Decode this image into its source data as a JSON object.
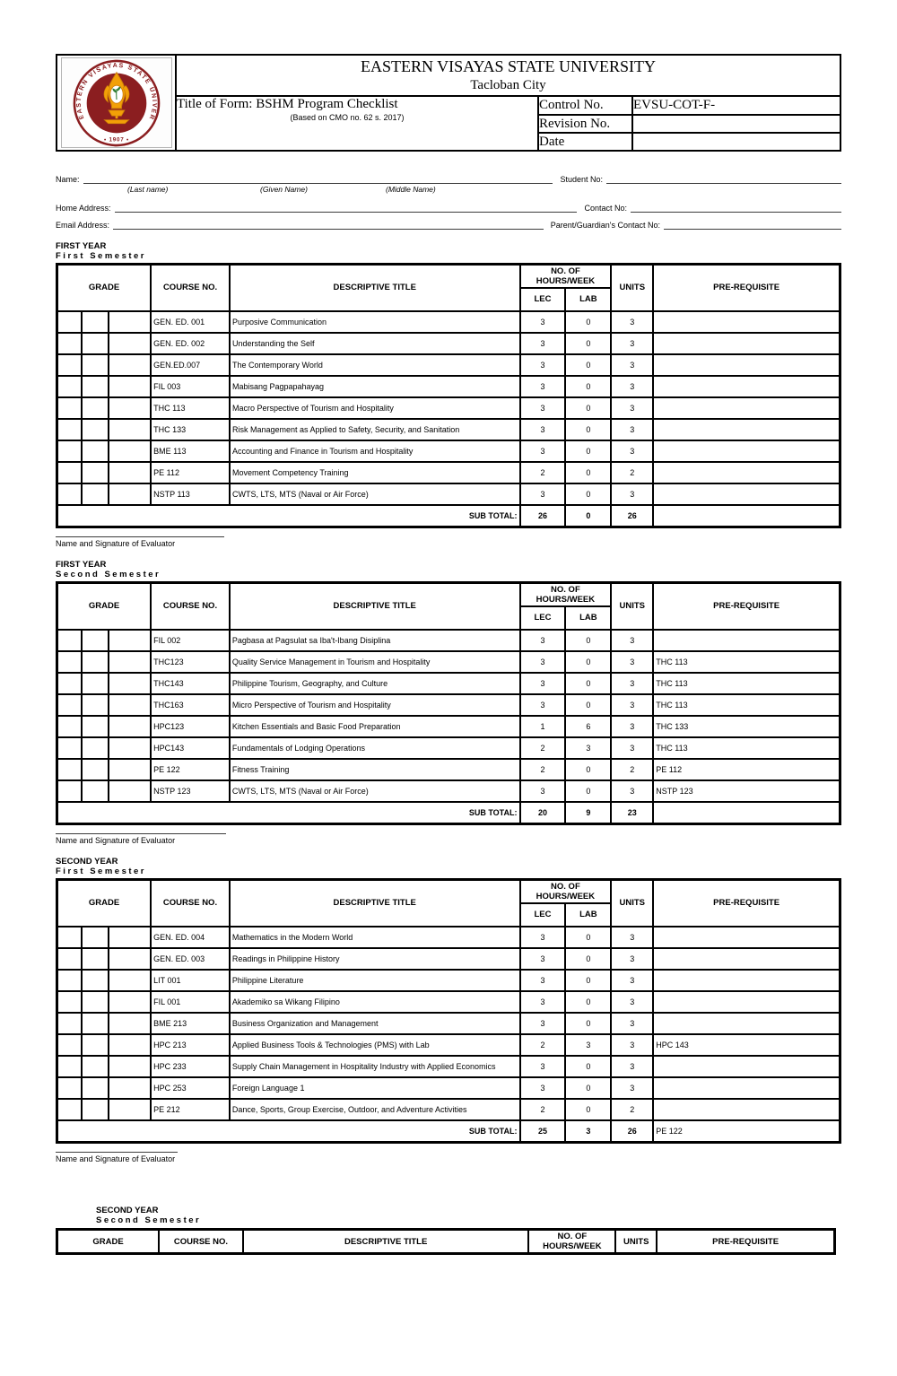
{
  "header": {
    "university": "EASTERN VISAYAS STATE UNIVERSITY",
    "city": "Tacloban City",
    "form_title": "Title of Form: BSHM Program Checklist",
    "form_subtitle": "(Based on CMO no. 62 s. 2017)",
    "control_label": "Control No.",
    "control_value": "EVSU-COT-F-",
    "revision_label": "Revision No.",
    "revision_value": "",
    "date_label": "Date",
    "date_value": "",
    "logo": {
      "ring_text": "EASTERN VISAYAS STATE UNIVERSITY",
      "year": "• 1907 •",
      "colors": {
        "maroon": "#8B1E20",
        "gold": "#F2A007",
        "gold_dark": "#C97A08",
        "green": "#2F7D32"
      }
    }
  },
  "student_info": {
    "name_label": "Name:",
    "last_name_hint": "(Last name)",
    "given_name_hint": "(Given Name)",
    "middle_name_hint": "(Middle Name)",
    "student_no_label": "Student No:",
    "home_address_label": "Home Address:",
    "contact_no_label": "Contact No:",
    "email_label": "Email Address:",
    "guardian_contact_label": "Parent/Guardian's Contact No:"
  },
  "table_headers": {
    "grade": "GRADE",
    "course_no": "COURSE NO.",
    "descriptive_title": "DESCRIPTIVE TITLE",
    "hours_week": "NO. OF HOURS/WEEK",
    "lec": "LEC",
    "lab": "LAB",
    "units": "UNITS",
    "pre_requisite": "PRE-REQUISITE",
    "sub_total": "SUB TOTAL:"
  },
  "evaluator_label": "Name and Signature of Evaluator",
  "sections": [
    {
      "year": "FIRST YEAR",
      "semester": "First Semester",
      "rows": [
        {
          "course": "GEN. ED. 001",
          "title": "Purposive Communication",
          "lec": "3",
          "lab": "0",
          "units": "3",
          "prereq": ""
        },
        {
          "course": "GEN. ED. 002",
          "title": "Understanding the Self",
          "lec": "3",
          "lab": "0",
          "units": "3",
          "prereq": ""
        },
        {
          "course": "GEN.ED.007",
          "title": "The Contemporary World",
          "lec": "3",
          "lab": "0",
          "units": "3",
          "prereq": ""
        },
        {
          "course": "FIL 003",
          "title": "Mabisang Pagpapahayag",
          "lec": "3",
          "lab": "0",
          "units": "3",
          "prereq": ""
        },
        {
          "course": "THC 113",
          "title": "Macro Perspective of Tourism and Hospitality",
          "lec": "3",
          "lab": "0",
          "units": "3",
          "prereq": ""
        },
        {
          "course": "THC 133",
          "title": "Risk Management as Applied to Safety, Security, and Sanitation",
          "lec": "3",
          "lab": "0",
          "units": "3",
          "prereq": ""
        },
        {
          "course": "BME 113",
          "title": "Accounting and Finance in Tourism and Hospitality",
          "lec": "3",
          "lab": "0",
          "units": "3",
          "prereq": ""
        },
        {
          "course": "PE 112",
          "title": "Movement Competency Training",
          "lec": "2",
          "lab": "0",
          "units": "2",
          "prereq": ""
        },
        {
          "course": "NSTP 113",
          "title": "CWTS, LTS, MTS (Naval or Air Force)",
          "lec": "3",
          "lab": "0",
          "units": "3",
          "prereq": ""
        }
      ],
      "subtotal": {
        "lec": "26",
        "lab": "0",
        "units": "26",
        "prereq": ""
      }
    },
    {
      "year": "FIRST YEAR",
      "semester": "Second Semester",
      "rows": [
        {
          "course": "FIL 002",
          "title": "Pagbasa at Pagsulat sa Iba't-Ibang Disiplina",
          "lec": "3",
          "lab": "0",
          "units": "3",
          "prereq": ""
        },
        {
          "course": "THC123",
          "title": "Quality Service Management in Tourism and Hospitality",
          "lec": "3",
          "lab": "0",
          "units": "3",
          "prereq": "THC 113"
        },
        {
          "course": "THC143",
          "title": "Philippine Tourism, Geography, and Culture",
          "lec": "3",
          "lab": "0",
          "units": "3",
          "prereq": "THC 113"
        },
        {
          "course": "THC163",
          "title": "Micro Perspective of Tourism and Hospitality",
          "lec": "3",
          "lab": "0",
          "units": "3",
          "prereq": "THC 113"
        },
        {
          "course": "HPC123",
          "title": "Kitchen Essentials and Basic Food Preparation",
          "lec": "1",
          "lab": "6",
          "units": "3",
          "prereq": "THC 133"
        },
        {
          "course": "HPC143",
          "title": "Fundamentals of Lodging Operations",
          "lec": "2",
          "lab": "3",
          "units": "3",
          "prereq": "THC 113"
        },
        {
          "course": "PE 122",
          "title": "Fitness Training",
          "lec": "2",
          "lab": "0",
          "units": "2",
          "prereq": "PE 112"
        },
        {
          "course": "NSTP 123",
          "title": "CWTS, LTS, MTS (Naval or Air Force)",
          "lec": "3",
          "lab": "0",
          "units": "3",
          "prereq": "NSTP 123"
        }
      ],
      "subtotal": {
        "lec": "20",
        "lab": "9",
        "units": "23",
        "prereq": ""
      }
    },
    {
      "year": "SECOND YEAR",
      "semester": "First Semester",
      "rows": [
        {
          "course": "GEN. ED. 004",
          "title": "Mathematics in the Modern World",
          "lec": "3",
          "lab": "0",
          "units": "3",
          "prereq": ""
        },
        {
          "course": "GEN. ED. 003",
          "title": "Readings in Philippine History",
          "lec": "3",
          "lab": "0",
          "units": "3",
          "prereq": ""
        },
        {
          "course": "LIT 001",
          "title": "Philippine Literature",
          "lec": "3",
          "lab": "0",
          "units": "3",
          "prereq": ""
        },
        {
          "course": "FIL 001",
          "title": "Akademiko sa Wikang Filipino",
          "lec": "3",
          "lab": "0",
          "units": "3",
          "prereq": ""
        },
        {
          "course": "BME 213",
          "title": "Business Organization and Management",
          "lec": "3",
          "lab": "0",
          "units": "3",
          "prereq": ""
        },
        {
          "course": "HPC 213",
          "title": "Applied Business Tools & Technologies (PMS) with Lab",
          "lec": "2",
          "lab": "3",
          "units": "3",
          "prereq": "HPC 143"
        },
        {
          "course": "HPC 233",
          "title": "Supply Chain Management in Hospitality Industry with Applied Economics",
          "lec": "3",
          "lab": "0",
          "units": "3",
          "prereq": ""
        },
        {
          "course": "HPC 253",
          "title": "Foreign Language 1",
          "lec": "3",
          "lab": "0",
          "units": "3",
          "prereq": ""
        },
        {
          "course": "PE 212",
          "title": "Dance, Sports, Group Exercise, Outdoor, and Adventure Activities",
          "lec": "2",
          "lab": "0",
          "units": "2",
          "prereq": ""
        }
      ],
      "subtotal": {
        "lec": "25",
        "lab": "3",
        "units": "26",
        "prereq": "PE 122"
      }
    }
  ],
  "last_section": {
    "year": "SECOND YEAR",
    "semester": "Second Semester"
  }
}
